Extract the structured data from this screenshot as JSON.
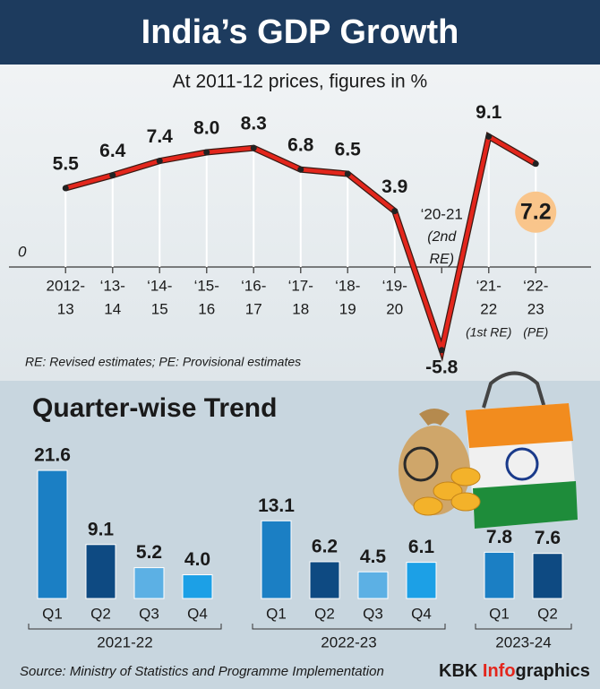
{
  "header": {
    "title": "India’s GDP Growth"
  },
  "chart_data": [
    {
      "type": "line",
      "subtitle": "At 2011-12 prices, figures in %",
      "categories": [
        [
          "2012-",
          "13"
        ],
        [
          "‘13-",
          "14"
        ],
        [
          "‘14-",
          "15"
        ],
        [
          "‘15-",
          "16"
        ],
        [
          "‘16-",
          "17"
        ],
        [
          "‘17-",
          "18"
        ],
        [
          "‘18-",
          "19"
        ],
        [
          "‘19-",
          "20"
        ],
        [
          "‘20-21"
        ],
        [
          "‘21-",
          "22"
        ],
        [
          "‘22-",
          "23"
        ]
      ],
      "category_notes": [
        null,
        null,
        null,
        null,
        null,
        null,
        null,
        null,
        [
          "(2nd",
          "RE)"
        ],
        [
          "(1st RE)"
        ],
        [
          "(PE)"
        ]
      ],
      "values": [
        5.5,
        6.4,
        7.4,
        8.0,
        8.3,
        6.8,
        6.5,
        3.9,
        -5.8,
        9.1,
        7.2
      ],
      "value_labels": [
        "5.5",
        "6.4",
        "7.4",
        "8.0",
        "8.3",
        "6.8",
        "6.5",
        "3.9",
        "-5.8",
        "9.1",
        "7.2"
      ],
      "color": "#e3261c",
      "highlight_color": "#f9c58b",
      "ylim": [
        -7,
        10.5
      ],
      "yticks": [
        0
      ],
      "footnote": "RE: Revised estimates; PE: Provisional estimates"
    },
    {
      "type": "grouped-bar",
      "title": "Quarter-wise Trend",
      "ylim": [
        0,
        22
      ],
      "groups": [
        {
          "label": "2021-22",
          "categories": [
            "Q1",
            "Q2",
            "Q3",
            "Q4"
          ],
          "values": [
            21.6,
            9.1,
            5.2,
            4.0
          ],
          "value_labels": [
            "21.6",
            "9.1",
            "5.2",
            "4.0"
          ],
          "colors": [
            "#1b7fc4",
            "#0e4a82",
            "#5cb0e4",
            "#1ca0e6"
          ]
        },
        {
          "label": "2022-23",
          "categories": [
            "Q1",
            "Q2",
            "Q3",
            "Q4"
          ],
          "values": [
            13.1,
            6.2,
            4.5,
            6.1
          ],
          "value_labels": [
            "13.1",
            "6.2",
            "4.5",
            "6.1"
          ],
          "colors": [
            "#1b7fc4",
            "#0e4a82",
            "#5cb0e4",
            "#1ca0e6"
          ]
        },
        {
          "label": "2023-24",
          "categories": [
            "Q1",
            "Q2"
          ],
          "values": [
            7.8,
            7.6
          ],
          "value_labels": [
            "7.8",
            "7.6"
          ],
          "colors": [
            "#1b7fc4",
            "#0e4a82"
          ]
        }
      ]
    }
  ],
  "source": "Source: Ministry of Statistics and Programme Implementation",
  "brand": [
    "KBK ",
    "Info",
    "graphics"
  ]
}
